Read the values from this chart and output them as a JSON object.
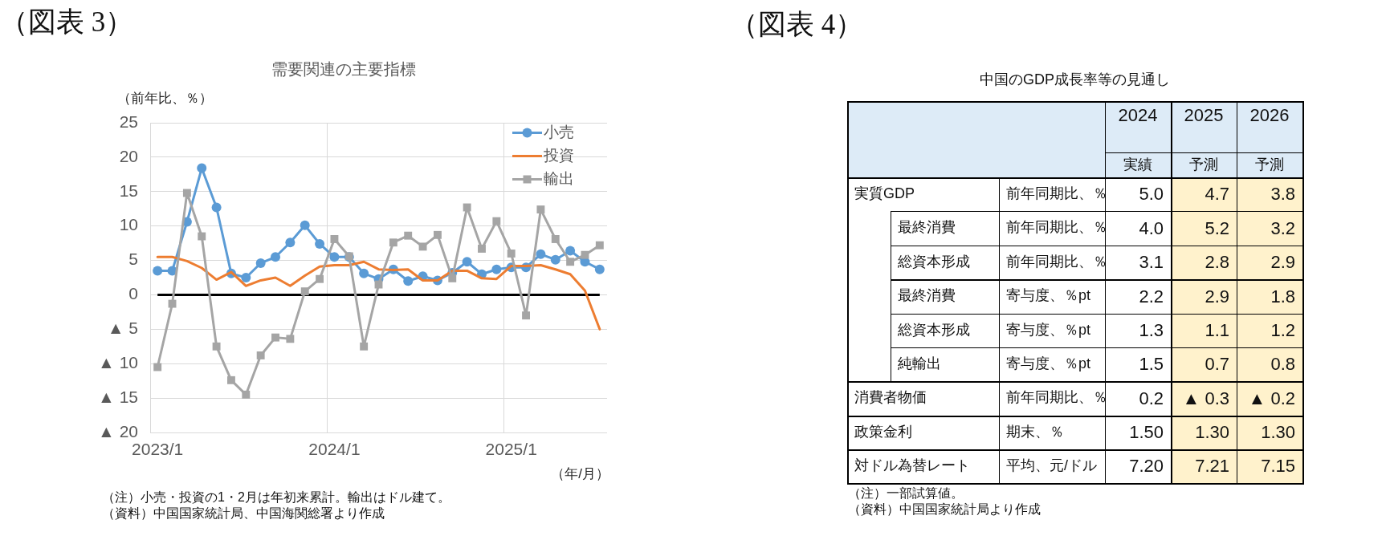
{
  "chart_data": [
    {
      "type": "line",
      "title": "需要関連の主要指標",
      "ylabel": "（前年比、％）",
      "xlabel": "（年/月）",
      "categories": [
        "2023/1",
        null,
        null,
        null,
        null,
        null,
        null,
        null,
        null,
        null,
        null,
        null,
        "2024/1",
        null,
        null,
        null,
        null,
        null,
        null,
        null,
        null,
        null,
        null,
        null,
        "2025/1",
        null,
        null,
        null,
        null,
        null,
        null
      ],
      "series": [
        {
          "name": "小売",
          "color": "#5b9bd5",
          "marker": "circle",
          "values": [
            3.5,
            3.5,
            10.6,
            18.4,
            12.7,
            3.1,
            2.5,
            4.6,
            5.5,
            7.6,
            10.1,
            7.4,
            5.5,
            5.5,
            3.1,
            2.3,
            3.7,
            2.0,
            2.7,
            2.1,
            3.2,
            4.8,
            3.0,
            3.7,
            4.0,
            4.0,
            5.9,
            5.1,
            6.4,
            4.8,
            3.7
          ]
        },
        {
          "name": "投資",
          "color": "#ed7d31",
          "marker": "none",
          "values": [
            5.5,
            5.5,
            4.9,
            3.9,
            2.2,
            3.3,
            1.3,
            2.1,
            2.5,
            1.3,
            2.8,
            4.1,
            4.3,
            4.3,
            4.8,
            3.7,
            3.6,
            3.7,
            2.1,
            2.1,
            3.5,
            3.5,
            2.4,
            2.3,
            4.2,
            4.2,
            4.3,
            3.7,
            3.0,
            0.6,
            -5.0
          ]
        },
        {
          "name": "輸出",
          "color": "#a5a5a5",
          "marker": "square",
          "values": [
            -10.5,
            -1.3,
            14.8,
            8.5,
            -7.5,
            -12.4,
            -14.5,
            -8.8,
            -6.2,
            -6.4,
            0.5,
            2.3,
            8.1,
            5.6,
            -7.5,
            1.5,
            7.6,
            8.6,
            7.0,
            8.7,
            2.4,
            12.7,
            6.7,
            10.7,
            6.0,
            -3.0,
            12.4,
            8.1,
            4.8,
            5.8,
            7.2
          ]
        }
      ],
      "ylim": [
        -20,
        25
      ],
      "yticks": [
        {
          "value": -20,
          "label": "▲ 20"
        },
        {
          "value": -15,
          "label": "▲ 15"
        },
        {
          "value": -10,
          "label": "▲ 10"
        },
        {
          "value": -5,
          "label": "▲ 5"
        },
        0,
        5,
        10,
        15,
        20,
        25
      ],
      "grid": true,
      "legend": "top right",
      "ref_lines": [
        {
          "axis": "y",
          "value": 0,
          "color": "#000000"
        }
      ],
      "annotations": [
        "（図表 3）",
        "（注）小売・投資の1・2月は年初来累計。輸出はドル建て。",
        "（資料）中国国家統計局、中国海関総署より作成"
      ]
    },
    {
      "type": "other",
      "title": "中国のGDP成長率等の見通し",
      "categories": [
        "2024",
        "2025",
        "2026"
      ],
      "y_categories": [
        "実質GDP",
        "最終消費",
        "総資本形成",
        "最終消費",
        "総資本形成",
        "純輸出",
        "消費者物価",
        "政策金利",
        "対ドル為替レート"
      ],
      "y2_categories": [
        "前年同期比、％",
        "前年同期比、％",
        "前年同期比、％",
        "寄与度、％pt",
        "寄与度、％pt",
        "寄与度、％pt",
        "前年同期比、％",
        "期末、％",
        "平均、元/ドル"
      ],
      "cell_labels": [
        [
          "5.0",
          "4.7",
          "3.8"
        ],
        [
          "4.0",
          "5.2",
          "3.2"
        ],
        [
          "3.1",
          "2.8",
          "2.9"
        ],
        [
          "2.2",
          "2.9",
          "1.8"
        ],
        [
          "1.3",
          "1.1",
          "1.2"
        ],
        [
          "1.5",
          "0.7",
          "0.8"
        ],
        [
          "0.2",
          "▲ 0.3",
          "▲ 0.2"
        ],
        [
          "1.50",
          "1.30",
          "1.30"
        ],
        [
          "7.20",
          "7.21",
          "7.15"
        ]
      ],
      "colors": [
        [
          "#ffffff",
          "#fff2cc",
          "#fff2cc"
        ],
        [
          "#ffffff",
          "#fff2cc",
          "#fff2cc"
        ],
        [
          "#ffffff",
          "#fff2cc",
          "#fff2cc"
        ],
        [
          "#ffffff",
          "#fff2cc",
          "#fff2cc"
        ],
        [
          "#ffffff",
          "#fff2cc",
          "#fff2cc"
        ],
        [
          "#ffffff",
          "#fff2cc",
          "#fff2cc"
        ],
        [
          "#ffffff",
          "#fff2cc",
          "#fff2cc"
        ],
        [
          "#ffffff",
          "#fff2cc",
          "#fff2cc"
        ],
        [
          "#ffffff",
          "#fff2cc",
          "#fff2cc"
        ]
      ],
      "annotations": [
        "（図表 4）",
        "実績",
        "予測",
        "予測",
        "（注）一部試算値。",
        "（資料）中国国家統計局より作成"
      ]
    }
  ]
}
